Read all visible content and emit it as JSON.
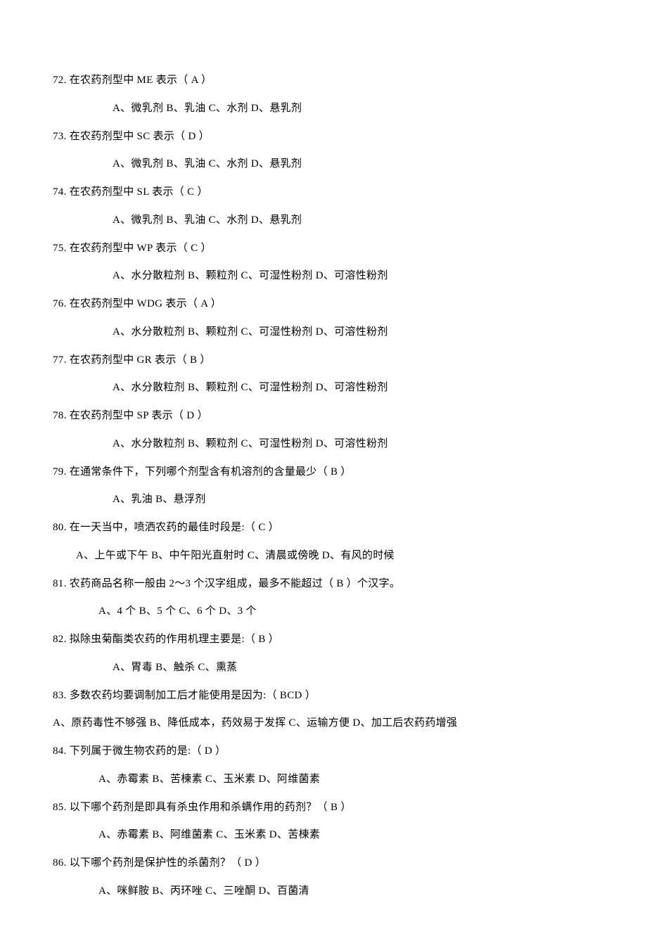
{
  "styles": {
    "font_family": "SimSun",
    "font_size_pt": 11,
    "text_color": "#000000",
    "background_color": "#ffffff",
    "line_height": 2.65
  },
  "questions": [
    {
      "num": "72",
      "stem": "72. 在农药剂型中 ME 表示（ A ）",
      "options": "A、微乳剂    B、乳油     C、水剂     D、悬乳剂",
      "opt_class": "options-line"
    },
    {
      "num": "73",
      "stem": "73. 在农药剂型中 SC 表示（ D ）",
      "options": "A、微乳剂   B、乳油     C、水剂     D、悬乳剂",
      "opt_class": "options-line"
    },
    {
      "num": "74",
      "stem": "74. 在农药剂型中 SL 表示（ C ）",
      "options": "A、微乳剂    B、乳油     C、水剂     D、悬乳剂",
      "opt_class": "options-line"
    },
    {
      "num": "75",
      "stem": "75. 在农药剂型中 WP 表示（ C ）",
      "options": "A、水分散粒剂    B、颗粒剂     C、可湿性粉剂     D、可溶性粉剂",
      "opt_class": "options-line"
    },
    {
      "num": "76",
      "stem": "76. 在农药剂型中 WDG 表示（ A  ）",
      "options": "A、水分散粒剂    B、颗粒剂     C、可湿性粉剂     D、可溶性粉剂",
      "opt_class": "options-line"
    },
    {
      "num": "77",
      "stem": "77. 在农药剂型中 GR 表示（ B ）",
      "options": "A、水分散粒剂    B、颗粒剂     C、可湿性粉剂     D、可溶性粉剂",
      "opt_class": "options-line"
    },
    {
      "num": "78",
      "stem": "78. 在农药剂型中 SP 表示（ D ）",
      "options": "A、水分散粒剂    B、颗粒剂     C、可湿性粉剂     D、可溶性粉剂",
      "opt_class": "options-line"
    },
    {
      "num": "79",
      "stem": "79. 在通常条件下，下列哪个剂型含有机溶剂的含量最少（ B ）",
      "options": "A、乳油    B、悬浮剂",
      "opt_class": "options-line"
    },
    {
      "num": "80",
      "stem": "80.  在一天当中，喷洒农药的最佳时段是:（ C ）",
      "options": "A、上午或下午    B、中午阳光直射时    C、清晨或傍晚     D、有风的时候",
      "opt_class": "options-line-c"
    },
    {
      "num": "81",
      "stem": "81. 农药商品名称一般由 2～3 个汉字组成，最多不能超过（ B ）个汉字。",
      "options": "A、4 个      B、5 个      C、6 个       D、3 个",
      "opt_class": "options-line-b"
    },
    {
      "num": "82",
      "stem": "82. 拟除虫菊酯类农药的作用机理主要是:（ B ）",
      "options": "A、胃毒     B、触杀      C、熏蒸",
      "opt_class": "options-line"
    },
    {
      "num": "83",
      "stem": "83. 多数农药均要调制加工后才能使用是因为:（    BCD   ）",
      "options": "A、原药毒性不够强  B、降低成本，药效易于发挥  C、运输方便  D、加工后农药药增强",
      "opt_class": "options-line-d"
    },
    {
      "num": "84",
      "stem": "84. 下列属于微生物农药的是:（ D ）",
      "options": "A、赤霉素    B、苦楝素     C、玉米素   D、阿维菌素",
      "opt_class": "options-line-b"
    },
    {
      "num": "85",
      "stem": "85. 以下哪个药剂是即具有杀虫作用和杀螨作用的药剂？（  B  ）",
      "options": "A、赤霉素    B、阿维菌素    C、玉米素   D、苦楝素",
      "opt_class": "options-line-b"
    },
    {
      "num": "86",
      "stem": "86. 以下哪个药剂是保护性的杀菌剂？（  D  ）",
      "options": "A、咪鲜胺     B、丙环唑    C、三唑酮   D、百菌清",
      "opt_class": "options-line-b"
    }
  ]
}
